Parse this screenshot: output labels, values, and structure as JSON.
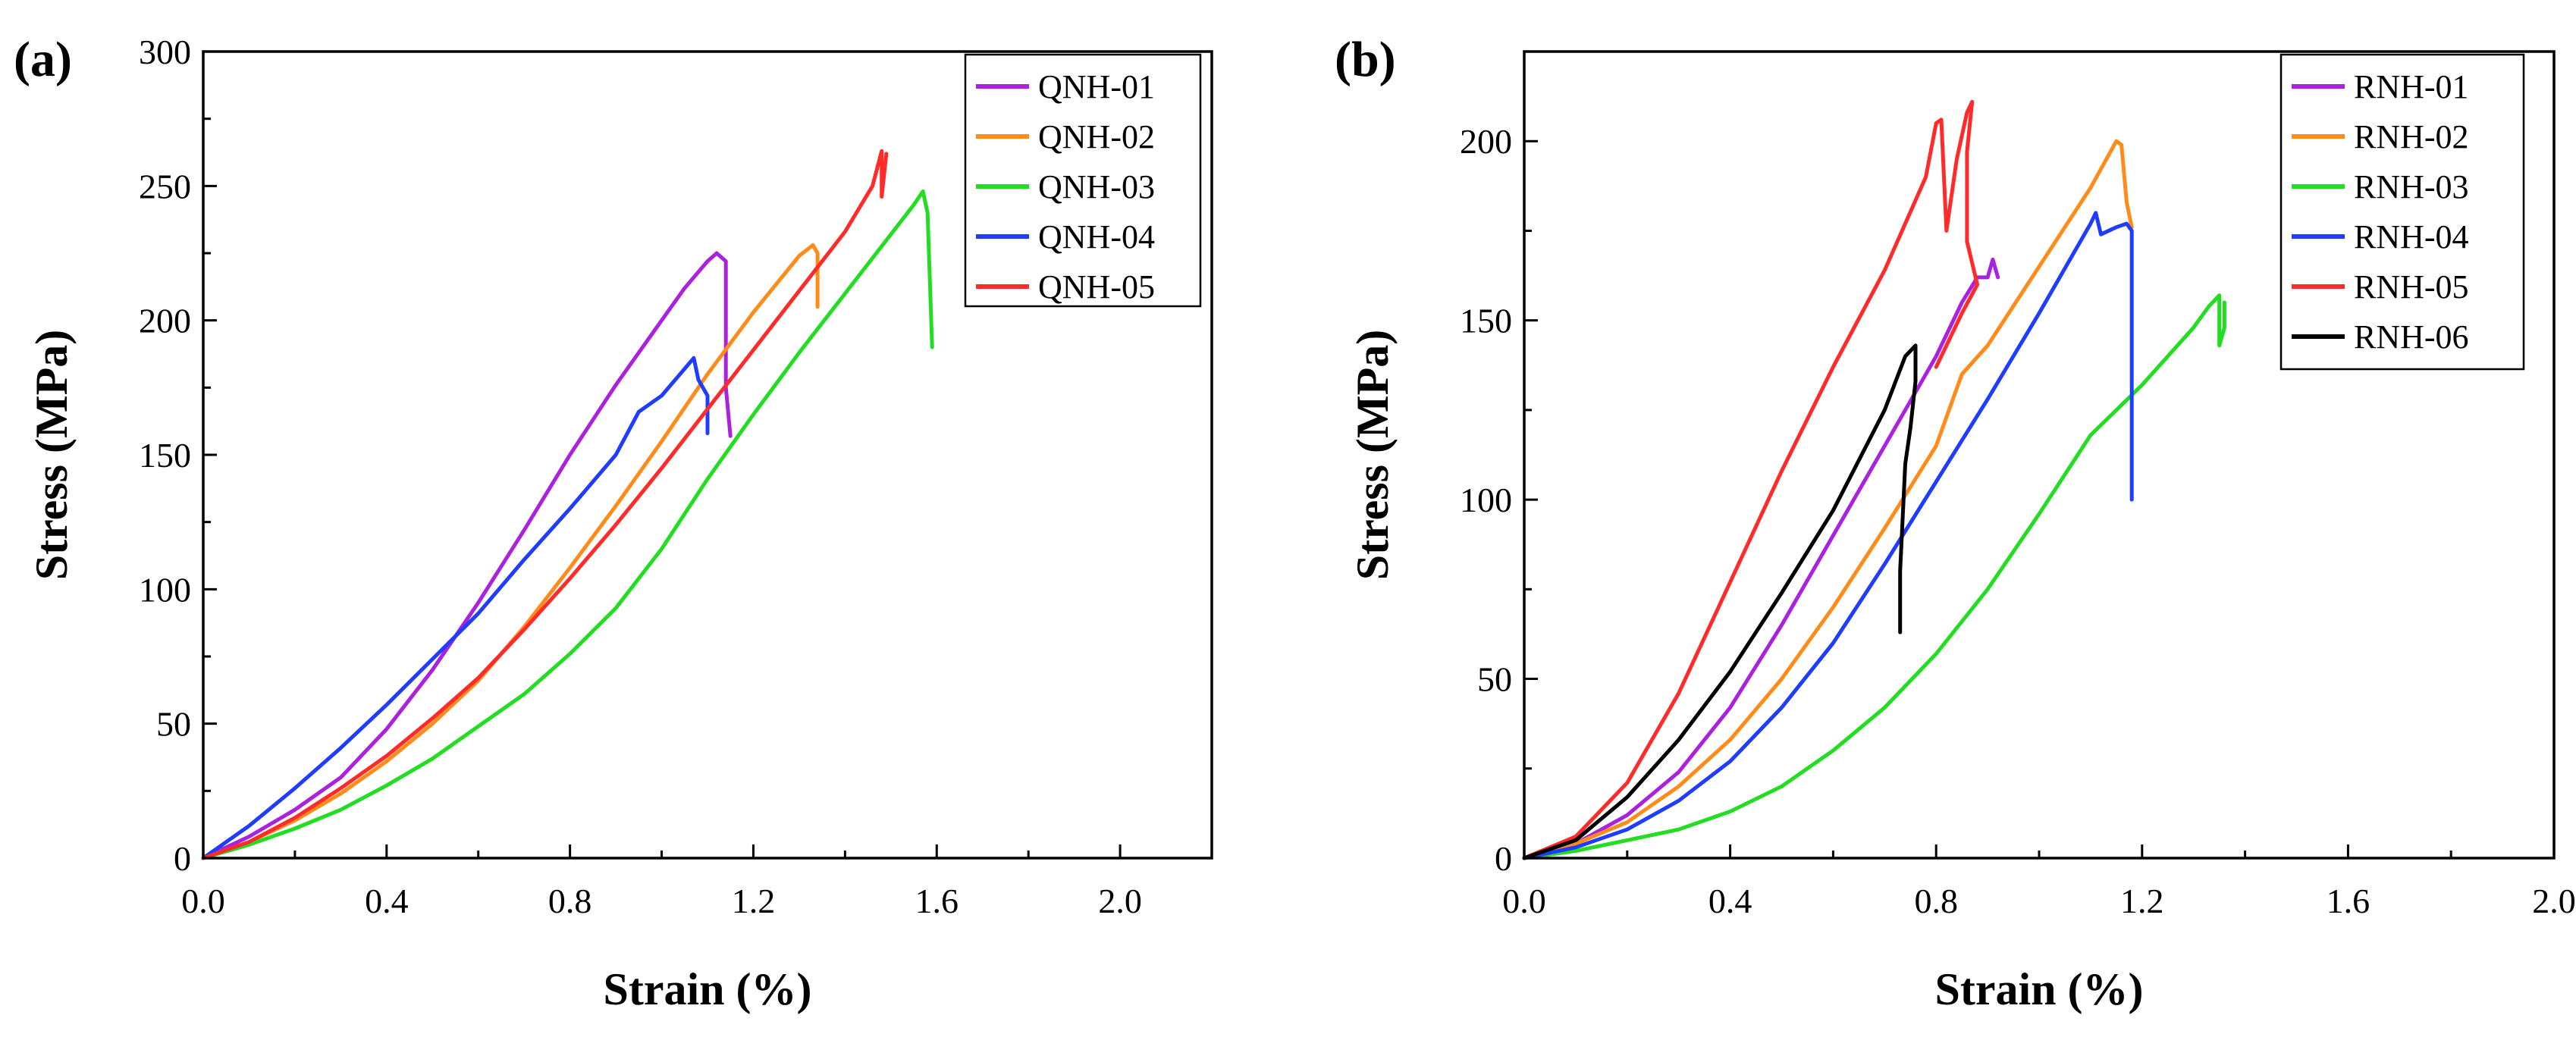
{
  "chart_data": [
    {
      "type": "line",
      "panel_label": "(a)",
      "title": "",
      "xlabel": "Strain (%)",
      "ylabel": "Stress (MPa)",
      "xlim": [
        0,
        2.2
      ],
      "ylim": [
        0,
        300
      ],
      "xticks": [
        0.0,
        0.4,
        0.8,
        1.2,
        1.6,
        2.0
      ],
      "xtick_labels": [
        "0.0",
        "0.4",
        "0.8",
        "1.2",
        "1.6",
        "2.0"
      ],
      "yticks": [
        0,
        50,
        100,
        150,
        200,
        250,
        300
      ],
      "ytick_labels": [
        "0",
        "50",
        "100",
        "150",
        "200",
        "250",
        "300"
      ],
      "grid": false,
      "legend_position": "top-right",
      "series": [
        {
          "name": "QNH-01",
          "color": "#aa22dd",
          "x": [
            0,
            0.1,
            0.2,
            0.3,
            0.4,
            0.5,
            0.6,
            0.7,
            0.8,
            0.9,
            1.0,
            1.05,
            1.1,
            1.12,
            1.14,
            1.14,
            1.15
          ],
          "y": [
            0,
            8,
            18,
            30,
            48,
            70,
            95,
            122,
            150,
            176,
            200,
            212,
            222,
            225,
            222,
            175,
            157
          ]
        },
        {
          "name": "QNH-02",
          "color": "#ff8c1a",
          "x": [
            0,
            0.1,
            0.2,
            0.3,
            0.4,
            0.5,
            0.6,
            0.7,
            0.8,
            0.9,
            1.0,
            1.1,
            1.2,
            1.3,
            1.33,
            1.34,
            1.34
          ],
          "y": [
            0,
            6,
            14,
            24,
            36,
            50,
            66,
            86,
            108,
            131,
            155,
            180,
            203,
            224,
            228,
            225,
            205
          ]
        },
        {
          "name": "QNH-03",
          "color": "#22dd22",
          "x": [
            0,
            0.1,
            0.2,
            0.3,
            0.4,
            0.5,
            0.6,
            0.7,
            0.8,
            0.9,
            1.0,
            1.1,
            1.2,
            1.3,
            1.4,
            1.5,
            1.55,
            1.57,
            1.58,
            1.59
          ],
          "y": [
            0,
            5,
            11,
            18,
            27,
            37,
            49,
            61,
            76,
            93,
            115,
            141,
            165,
            188,
            210,
            232,
            243,
            248,
            240,
            190
          ]
        },
        {
          "name": "QNH-04",
          "color": "#1f3cff",
          "x": [
            0,
            0.1,
            0.2,
            0.3,
            0.4,
            0.5,
            0.6,
            0.7,
            0.8,
            0.9,
            0.95,
            1.0,
            1.05,
            1.07,
            1.08,
            1.1,
            1.1
          ],
          "y": [
            0,
            12,
            26,
            41,
            57,
            74,
            91,
            111,
            130,
            150,
            166,
            172,
            182,
            186,
            178,
            172,
            158
          ]
        },
        {
          "name": "QNH-05",
          "color": "#ff2a2a",
          "x": [
            0,
            0.1,
            0.2,
            0.3,
            0.4,
            0.5,
            0.6,
            0.7,
            0.8,
            0.9,
            1.0,
            1.1,
            1.2,
            1.3,
            1.4,
            1.46,
            1.48,
            1.48,
            1.49
          ],
          "y": [
            0,
            6,
            15,
            26,
            38,
            52,
            67,
            85,
            104,
            124,
            145,
            167,
            189,
            211,
            233,
            250,
            263,
            246,
            262
          ]
        }
      ]
    },
    {
      "type": "line",
      "panel_label": "(b)",
      "title": "",
      "xlabel": "Strain (%)",
      "ylabel": "Stress (MPa)",
      "xlim": [
        0,
        2.0
      ],
      "ylim": [
        0,
        225
      ],
      "xticks": [
        0.0,
        0.4,
        0.8,
        1.2,
        1.6,
        2.0
      ],
      "xtick_labels": [
        "0.0",
        "0.4",
        "0.8",
        "1.2",
        "1.6",
        "2.0"
      ],
      "yticks": [
        0,
        50,
        100,
        150,
        200
      ],
      "ytick_labels": [
        "0",
        "50",
        "100",
        "150",
        "200"
      ],
      "grid": false,
      "legend_position": "top-right",
      "series": [
        {
          "name": "RNH-01",
          "color": "#aa22dd",
          "x": [
            0,
            0.1,
            0.2,
            0.3,
            0.4,
            0.5,
            0.6,
            0.7,
            0.8,
            0.85,
            0.88,
            0.9,
            0.91,
            0.92
          ],
          "y": [
            0,
            4,
            12,
            24,
            42,
            65,
            90,
            115,
            140,
            155,
            162,
            162,
            167,
            162
          ]
        },
        {
          "name": "RNH-02",
          "color": "#ff8c1a",
          "x": [
            0,
            0.1,
            0.2,
            0.3,
            0.4,
            0.5,
            0.6,
            0.7,
            0.8,
            0.85,
            0.9,
            1.0,
            1.1,
            1.15,
            1.16,
            1.17,
            1.18
          ],
          "y": [
            0,
            4,
            10,
            20,
            33,
            50,
            70,
            92,
            115,
            135,
            143,
            165,
            187,
            200,
            199,
            183,
            176
          ]
        },
        {
          "name": "RNH-03",
          "color": "#22dd22",
          "x": [
            0,
            0.1,
            0.2,
            0.3,
            0.4,
            0.5,
            0.6,
            0.7,
            0.8,
            0.9,
            1.0,
            1.1,
            1.2,
            1.3,
            1.33,
            1.35,
            1.35,
            1.36,
            1.36
          ],
          "y": [
            0,
            2,
            5,
            8,
            13,
            20,
            30,
            42,
            57,
            75,
            96,
            118,
            132,
            148,
            154,
            157,
            143,
            148,
            155
          ]
        },
        {
          "name": "RNH-04",
          "color": "#1f3cff",
          "x": [
            0,
            0.1,
            0.2,
            0.3,
            0.4,
            0.5,
            0.6,
            0.7,
            0.8,
            0.9,
            1.0,
            1.1,
            1.11,
            1.12,
            1.15,
            1.17,
            1.18,
            1.18
          ],
          "y": [
            0,
            3,
            8,
            16,
            27,
            42,
            60,
            82,
            105,
            128,
            152,
            177,
            180,
            174,
            176,
            177,
            175,
            100
          ]
        },
        {
          "name": "RNH-05",
          "color": "#ff2a2a",
          "x": [
            0,
            0.1,
            0.2,
            0.3,
            0.4,
            0.5,
            0.6,
            0.7,
            0.78,
            0.8,
            0.81,
            0.82,
            0.84,
            0.86,
            0.87,
            0.86,
            0.86,
            0.88,
            0.85,
            0.82,
            0.8
          ],
          "y": [
            0,
            6,
            21,
            46,
            77,
            108,
            137,
            164,
            190,
            205,
            206,
            175,
            195,
            208,
            211,
            197,
            172,
            160,
            152,
            143,
            137
          ]
        },
        {
          "name": "RNH-06",
          "color": "#000000",
          "x": [
            0,
            0.1,
            0.2,
            0.3,
            0.4,
            0.5,
            0.6,
            0.7,
            0.74,
            0.76,
            0.76,
            0.75,
            0.74,
            0.73,
            0.73
          ],
          "y": [
            0,
            5,
            17,
            33,
            52,
            74,
            97,
            125,
            140,
            143,
            133,
            120,
            110,
            80,
            63
          ]
        }
      ]
    }
  ]
}
